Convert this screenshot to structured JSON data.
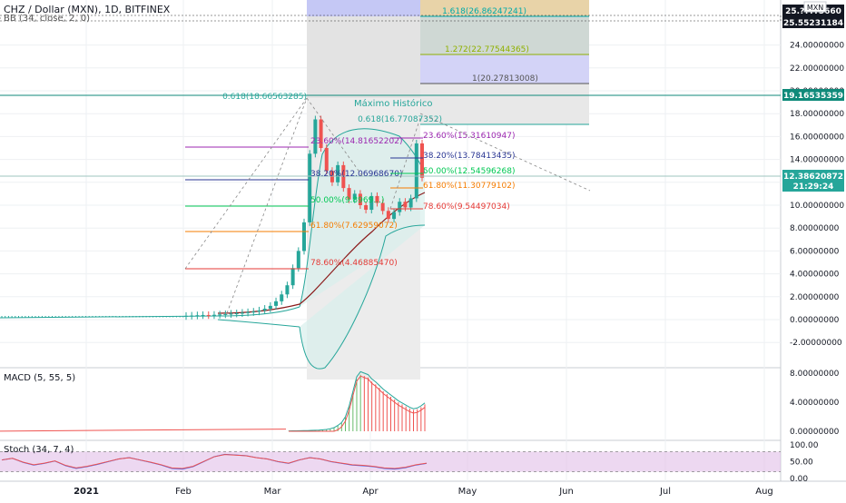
{
  "header": {
    "symbol_line": "CHZ / Dollar (MXN), 1D, BITFINEX",
    "indicator_line": "BB (34, close, 2, 0)"
  },
  "price_axis": {
    "currency_badge": "MXN",
    "ticks": [
      "24.00000000",
      "22.00000000",
      "20.00000000",
      "18.00000000",
      "16.00000000",
      "14.00000000",
      "12.00000000",
      "10.00000000",
      "8.00000000",
      "6.00000000",
      "4.00000000",
      "2.00000000",
      "0.00000000",
      "-2.00000000"
    ],
    "top_labels": [
      "25.????5660",
      "25.55231184"
    ],
    "label_high": "19.16535359",
    "label_last": "12.38620872",
    "label_countdown": "21:29:24"
  },
  "macd": {
    "title": "MACD (5, 55, 5)",
    "ticks": [
      "8.00000000",
      "4.00000000",
      "0.00000000"
    ]
  },
  "stoch": {
    "title": "Stoch (34, 7, 4)",
    "ticks": [
      "100.00",
      "50.00",
      "0.00"
    ]
  },
  "time_axis": {
    "labels": [
      "2021",
      "Feb",
      "Mar",
      "Apr",
      "May",
      "Jun",
      "Jul",
      "Aug"
    ]
  },
  "annotations": {
    "max_label": "Máximo Histórico",
    "fib_ext": [
      {
        "label": "1.618(26.86247241)",
        "color": "#0aa"
      },
      {
        "label": "1.272(22.77544365)",
        "color": "#8fb000"
      },
      {
        "label": "1(20.27813008)",
        "color": "#555"
      },
      {
        "label": "0.618(16.77087352)",
        "color": "#26a69a"
      },
      {
        "label": "0.618(18.66563285)",
        "color": "#26a69a"
      }
    ],
    "fib_a": [
      {
        "label": "23.60%(14.81652202)",
        "color": "#9c27b0"
      },
      {
        "label": "38.20%(12.06968670)",
        "color": "#283593"
      },
      {
        "label": "50.00%(9.8969...)",
        "color": "#00c853"
      },
      {
        "label": "61.80%(7.62959072)",
        "color": "#f57c00"
      },
      {
        "label": "78.60%(4.46885470)",
        "color": "#e53935"
      }
    ],
    "fib_b": [
      {
        "label": "23.60%(15.31610947)",
        "color": "#9c27b0"
      },
      {
        "label": "38.20%(13.78413435)",
        "color": "#283593"
      },
      {
        "label": "50.00%(12.54596268)",
        "color": "#00c853"
      },
      {
        "label": "61.80%(11.30779102)",
        "color": "#f57c00"
      },
      {
        "label": "78.60%(9.54497034)",
        "color": "#e53935"
      }
    ]
  },
  "colors": {
    "up": "#26a69a",
    "down": "#ef5350",
    "bb": "#26a69a",
    "bbfill": "#d8f0ec",
    "ma": "#8b1a1a",
    "grid": "#eef0f3",
    "macd_line": "#26a69a",
    "macd_signal": "#ef5350",
    "stoch_k": "#2962ff",
    "stoch_d": "#ef5350",
    "stoch_band": "#e1bee7"
  },
  "chart_data": {
    "type": "candlestick",
    "title": "CHZ / Dollar (MXN), 1D, BITFINEX",
    "ylim": [
      -4,
      25.6
    ],
    "x_range": [
      "2020-12",
      "2021-08"
    ],
    "series": [
      {
        "values": [
          [
            0.3,
            0.33
          ],
          [
            0.33,
            0.35
          ],
          [
            0.35,
            0.38
          ],
          [
            0.38,
            0.4
          ],
          [
            0.4,
            0.38
          ],
          [
            0.38,
            0.42
          ],
          [
            0.42,
            0.45
          ],
          [
            0.45,
            0.48
          ],
          [
            0.48,
            0.52
          ],
          [
            0.52,
            0.55
          ],
          [
            0.55,
            0.6
          ],
          [
            0.6,
            0.65
          ],
          [
            0.65,
            0.7
          ],
          [
            0.7,
            0.8
          ],
          [
            0.8,
            0.95
          ],
          [
            0.95,
            1.2
          ],
          [
            1.2,
            1.6
          ],
          [
            1.6,
            2.2
          ],
          [
            2.2,
            3.0
          ],
          [
            3.0,
            4.5
          ],
          [
            4.5,
            6.0
          ],
          [
            6.0,
            8.5
          ],
          [
            8.5,
            14.5
          ],
          [
            14.5,
            17.5
          ],
          [
            17.5,
            15.0
          ],
          [
            15.0,
            13.0
          ],
          [
            13.0,
            12.0
          ],
          [
            12.0,
            13.5
          ],
          [
            13.5,
            11.5
          ],
          [
            11.5,
            10.5
          ],
          [
            10.5,
            11.0
          ],
          [
            11.0,
            10.0
          ],
          [
            10.0,
            9.6
          ],
          [
            9.6,
            10.8
          ],
          [
            10.8,
            10.2
          ],
          [
            10.2,
            9.5
          ],
          [
            9.5,
            8.8
          ],
          [
            8.8,
            9.4
          ],
          [
            9.4,
            10.3
          ],
          [
            10.3,
            9.8
          ],
          [
            9.8,
            10.6
          ],
          [
            10.6,
            15.4
          ],
          [
            15.4,
            12.4
          ]
        ]
      }
    ],
    "macd_values": [
      0.05,
      0.06,
      0.07,
      0.08,
      0.09,
      0.1,
      0.12,
      0.14,
      0.16,
      0.2,
      0.25,
      0.35,
      0.5,
      0.8,
      1.2,
      2.0,
      3.5,
      5.5,
      7.5,
      8.2,
      8.0,
      7.8,
      7.2,
      6.8,
      6.3,
      5.8,
      5.4,
      5.0,
      4.6,
      4.2,
      3.9,
      3.6,
      3.3,
      3.1,
      3.2,
      3.5,
      3.9
    ]
  }
}
